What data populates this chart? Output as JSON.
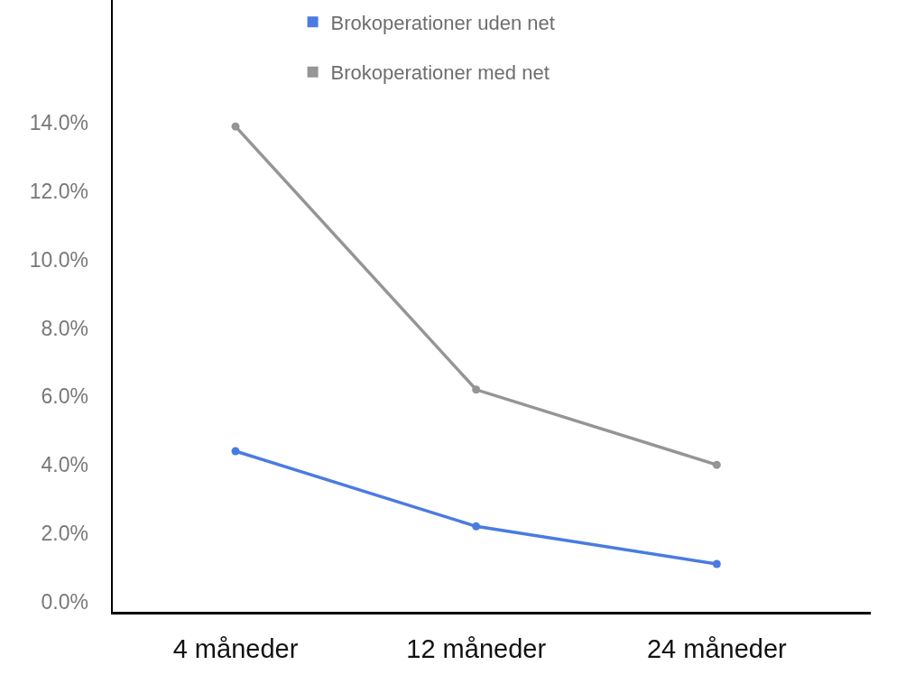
{
  "chart_data": {
    "type": "line",
    "categories": [
      "4 måneder",
      "12 måneder",
      "24 måneder"
    ],
    "series": [
      {
        "name": "Brokoperationer uden net",
        "color": "#4a7be0",
        "values": [
          4.4,
          2.2,
          1.1
        ]
      },
      {
        "name": "Brokoperationer med net",
        "color": "#959595",
        "values": [
          13.9,
          6.2,
          4.0
        ]
      }
    ],
    "ylim": [
      -0.3,
      17.6
    ],
    "yticks": [
      {
        "value": 0,
        "label": "0.0%"
      },
      {
        "value": 2,
        "label": "2.0%"
      },
      {
        "value": 4,
        "label": "4.0%"
      },
      {
        "value": 6,
        "label": "6.0%"
      },
      {
        "value": 8,
        "label": "8.0%"
      },
      {
        "value": 10,
        "label": "10.0%"
      },
      {
        "value": 12,
        "label": "12.0%"
      },
      {
        "value": 14,
        "label": "14.0%"
      }
    ],
    "grid": false,
    "legend": "top",
    "marker": "circle",
    "line_style": "solid"
  }
}
